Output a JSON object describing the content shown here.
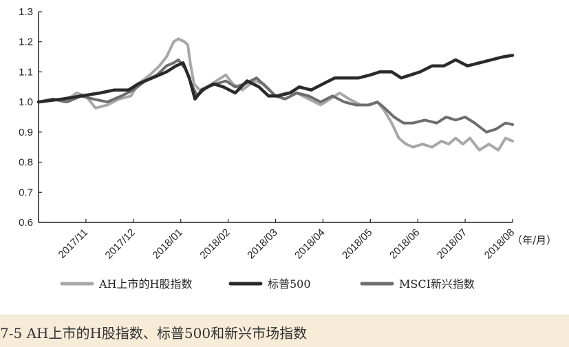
{
  "chart_data": {
    "type": "line",
    "xlabel": "（年/月）",
    "ylabel": "",
    "ylim": [
      0.6,
      1.3
    ],
    "yticks": [
      "0.6",
      "0.7",
      "0.8",
      "0.9",
      "1.0",
      "1.1",
      "1.2",
      "1.3"
    ],
    "categories": [
      "2017/11",
      "2017/12",
      "2018/01",
      "2018/02",
      "2018/03",
      "2018/04",
      "2018/05",
      "2018/06",
      "2018/07",
      "2018/08"
    ],
    "x_range": [
      0,
      10
    ],
    "legend_position": "bottom",
    "grid": false,
    "series": [
      {
        "name": "AH上市的H股指数",
        "color": "#a8a8a8",
        "points": [
          [
            0,
            1.0
          ],
          [
            0.3,
            1.01
          ],
          [
            0.55,
            1.0
          ],
          [
            0.8,
            1.03
          ],
          [
            1.0,
            1.02
          ],
          [
            1.2,
            0.98
          ],
          [
            1.45,
            0.99
          ],
          [
            1.7,
            1.01
          ],
          [
            1.95,
            1.02
          ],
          [
            2.1,
            1.06
          ],
          [
            2.35,
            1.09
          ],
          [
            2.55,
            1.12
          ],
          [
            2.7,
            1.15
          ],
          [
            2.85,
            1.2
          ],
          [
            2.95,
            1.21
          ],
          [
            3.08,
            1.2
          ],
          [
            3.15,
            1.19
          ],
          [
            3.2,
            1.13
          ],
          [
            3.28,
            1.06
          ],
          [
            3.4,
            1.04
          ],
          [
            3.55,
            1.05
          ],
          [
            3.75,
            1.07
          ],
          [
            3.95,
            1.09
          ],
          [
            4.1,
            1.06
          ],
          [
            4.3,
            1.04
          ],
          [
            4.55,
            1.07
          ],
          [
            4.75,
            1.06
          ],
          [
            5.0,
            1.02
          ],
          [
            5.2,
            1.03
          ],
          [
            5.45,
            1.03
          ],
          [
            5.7,
            1.01
          ],
          [
            5.95,
            0.99
          ],
          [
            6.15,
            1.01
          ],
          [
            6.35,
            1.03
          ],
          [
            6.55,
            1.01
          ],
          [
            6.8,
            0.99
          ],
          [
            7.0,
            0.99
          ],
          [
            7.15,
            1.0
          ],
          [
            7.3,
            0.97
          ],
          [
            7.45,
            0.93
          ],
          [
            7.6,
            0.88
          ],
          [
            7.75,
            0.86
          ],
          [
            7.9,
            0.85
          ],
          [
            8.1,
            0.86
          ],
          [
            8.3,
            0.85
          ],
          [
            8.5,
            0.87
          ],
          [
            8.65,
            0.86
          ],
          [
            8.8,
            0.88
          ],
          [
            8.95,
            0.86
          ],
          [
            9.1,
            0.88
          ],
          [
            9.3,
            0.84
          ],
          [
            9.5,
            0.86
          ],
          [
            9.7,
            0.84
          ],
          [
            9.85,
            0.88
          ],
          [
            10.0,
            0.87
          ]
        ]
      },
      {
        "name": "标普500",
        "color": "#2a2a2a",
        "points": [
          [
            0,
            1.0
          ],
          [
            0.5,
            1.01
          ],
          [
            0.9,
            1.02
          ],
          [
            1.3,
            1.03
          ],
          [
            1.6,
            1.04
          ],
          [
            1.9,
            1.04
          ],
          [
            2.1,
            1.06
          ],
          [
            2.4,
            1.08
          ],
          [
            2.7,
            1.1
          ],
          [
            2.9,
            1.12
          ],
          [
            3.05,
            1.13
          ],
          [
            3.18,
            1.08
          ],
          [
            3.3,
            1.01
          ],
          [
            3.45,
            1.04
          ],
          [
            3.7,
            1.06
          ],
          [
            3.9,
            1.05
          ],
          [
            4.15,
            1.03
          ],
          [
            4.4,
            1.07
          ],
          [
            4.65,
            1.05
          ],
          [
            4.85,
            1.02
          ],
          [
            5.05,
            1.02
          ],
          [
            5.3,
            1.03
          ],
          [
            5.5,
            1.05
          ],
          [
            5.75,
            1.04
          ],
          [
            6.0,
            1.06
          ],
          [
            6.25,
            1.08
          ],
          [
            6.5,
            1.08
          ],
          [
            6.75,
            1.08
          ],
          [
            7.0,
            1.09
          ],
          [
            7.2,
            1.1
          ],
          [
            7.45,
            1.1
          ],
          [
            7.65,
            1.08
          ],
          [
            7.85,
            1.09
          ],
          [
            8.05,
            1.1
          ],
          [
            8.3,
            1.12
          ],
          [
            8.55,
            1.12
          ],
          [
            8.8,
            1.14
          ],
          [
            9.05,
            1.12
          ],
          [
            9.3,
            1.13
          ],
          [
            9.55,
            1.14
          ],
          [
            9.8,
            1.15
          ],
          [
            10.0,
            1.155
          ]
        ]
      },
      {
        "name": "MSCI新兴指数",
        "color": "#6e6e6e",
        "points": [
          [
            0,
            1.0
          ],
          [
            0.3,
            1.01
          ],
          [
            0.6,
            1.0
          ],
          [
            0.9,
            1.02
          ],
          [
            1.15,
            1.01
          ],
          [
            1.45,
            1.0
          ],
          [
            1.75,
            1.02
          ],
          [
            2.0,
            1.04
          ],
          [
            2.25,
            1.07
          ],
          [
            2.5,
            1.09
          ],
          [
            2.7,
            1.12
          ],
          [
            2.85,
            1.13
          ],
          [
            2.95,
            1.14
          ],
          [
            3.1,
            1.11
          ],
          [
            3.22,
            1.06
          ],
          [
            3.35,
            1.02
          ],
          [
            3.55,
            1.05
          ],
          [
            3.75,
            1.06
          ],
          [
            3.95,
            1.07
          ],
          [
            4.15,
            1.05
          ],
          [
            4.35,
            1.06
          ],
          [
            4.6,
            1.08
          ],
          [
            4.8,
            1.05
          ],
          [
            5.0,
            1.02
          ],
          [
            5.2,
            1.01
          ],
          [
            5.45,
            1.03
          ],
          [
            5.7,
            1.02
          ],
          [
            5.95,
            1.0
          ],
          [
            6.2,
            1.02
          ],
          [
            6.45,
            1.0
          ],
          [
            6.7,
            0.99
          ],
          [
            6.95,
            0.99
          ],
          [
            7.15,
            1.0
          ],
          [
            7.3,
            0.98
          ],
          [
            7.5,
            0.95
          ],
          [
            7.7,
            0.93
          ],
          [
            7.9,
            0.93
          ],
          [
            8.15,
            0.94
          ],
          [
            8.4,
            0.93
          ],
          [
            8.6,
            0.95
          ],
          [
            8.8,
            0.94
          ],
          [
            9.0,
            0.95
          ],
          [
            9.2,
            0.93
          ],
          [
            9.45,
            0.9
          ],
          [
            9.65,
            0.91
          ],
          [
            9.85,
            0.93
          ],
          [
            10.0,
            0.925
          ]
        ]
      }
    ]
  },
  "caption": {
    "text": "7-5 AH上市的H股指数、标普500和新兴市场指数"
  }
}
